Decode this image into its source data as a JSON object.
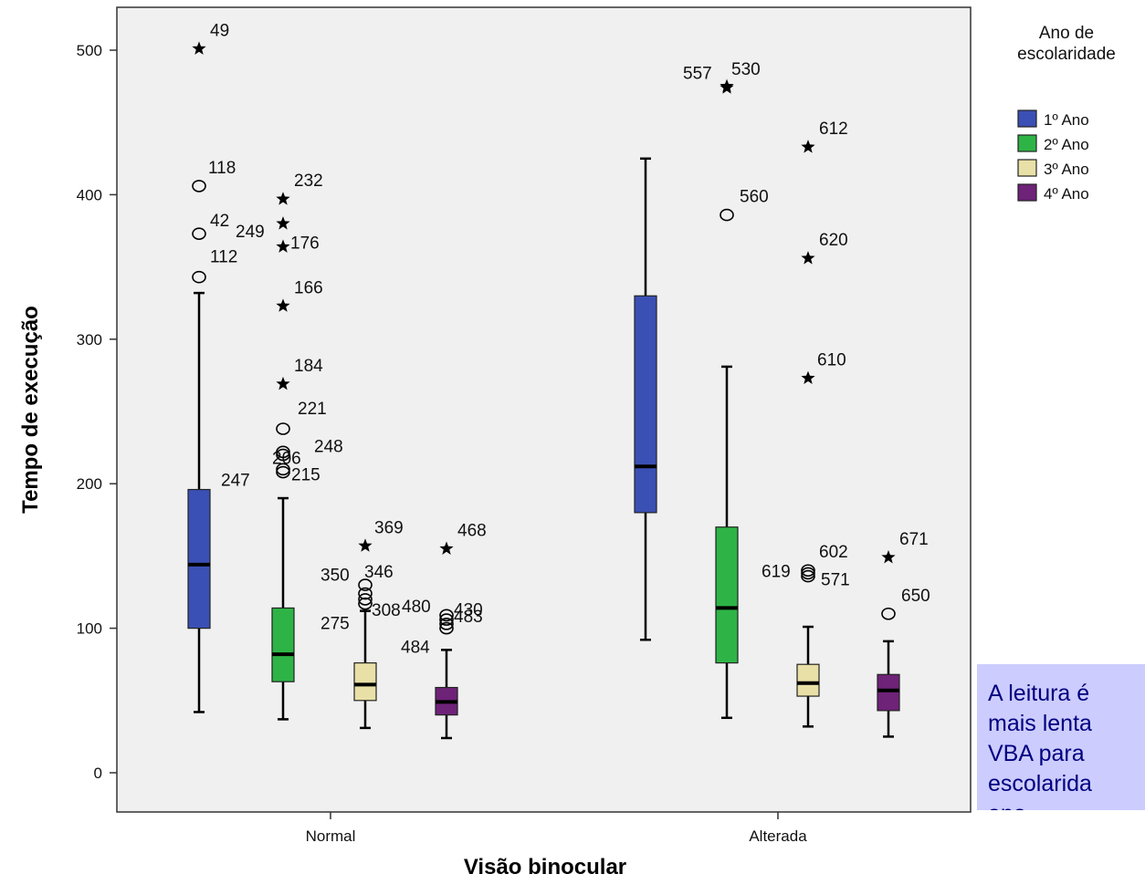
{
  "annotation_text": "A leitura é\nmais lenta\nVBA para\nescolarida\nano.",
  "legend": {
    "title_line1": "Ano de",
    "title_line2": "escolaridade"
  },
  "colors": {
    "1º Ano": "#3b50b4",
    "2º Ano": "#2eb446",
    "3º Ano": "#e8e0a6",
    "4º Ano": "#6e2278",
    "plot_background": "#f0f0f0",
    "annotation_background": "#ccccff",
    "annotation_text": "#000080"
  },
  "chart_data": {
    "type": "boxplot",
    "xlabel": "Visão binocular",
    "ylabel": "Tempo de execução",
    "ylim": [
      -20,
      530
    ],
    "yticks": [
      0,
      100,
      200,
      300,
      400,
      500
    ],
    "grid": false,
    "legend_position": "top-right",
    "categories": [
      "Normal",
      "Alterada"
    ],
    "series": [
      {
        "name": "1º Ano",
        "boxes": [
          {
            "category": "Normal",
            "whisker_low": 42,
            "q1": 100,
            "median": 144,
            "q3": 196,
            "whisker_high": 332,
            "outliers": [
              {
                "label": "112",
                "value": 343,
                "marker": "circle"
              },
              {
                "label": "42",
                "value": 373,
                "marker": "circle"
              },
              {
                "label": "118",
                "value": 406,
                "marker": "circle"
              },
              {
                "label": "49",
                "value": 501,
                "marker": "star"
              }
            ]
          },
          {
            "category": "Alterada",
            "whisker_low": 92,
            "q1": 180,
            "median": 212,
            "q3": 330,
            "whisker_high": 425,
            "outliers": []
          }
        ]
      },
      {
        "name": "2º Ano",
        "boxes": [
          {
            "category": "Normal",
            "whisker_low": 37,
            "q1": 63,
            "median": 82,
            "q3": 114,
            "whisker_high": 190,
            "outliers": [
              {
                "label": "247",
                "value": 208,
                "marker": "circle"
              },
              {
                "label": "215",
                "value": 210,
                "marker": "circle"
              },
              {
                "label": "206",
                "value": 220,
                "marker": "circle"
              },
              {
                "label": "248",
                "value": 222,
                "marker": "circle"
              },
              {
                "label": "221",
                "value": 238,
                "marker": "circle"
              },
              {
                "label": "184",
                "value": 269,
                "marker": "star"
              },
              {
                "label": "166",
                "value": 323,
                "marker": "star"
              },
              {
                "label": "176",
                "value": 364,
                "marker": "star"
              },
              {
                "label": "249",
                "value": 380,
                "marker": "star"
              },
              {
                "label": "232",
                "value": 397,
                "marker": "star"
              }
            ]
          },
          {
            "category": "Alterada",
            "whisker_low": 38,
            "q1": 76,
            "median": 114,
            "q3": 170,
            "whisker_high": 281,
            "outliers": [
              {
                "label": "560",
                "value": 386,
                "marker": "circle"
              },
              {
                "label": "557",
                "value": 475,
                "marker": "star"
              },
              {
                "label": "530",
                "value": 474,
                "marker": "star"
              }
            ]
          }
        ]
      },
      {
        "name": "3º Ano",
        "boxes": [
          {
            "category": "Normal",
            "whisker_low": 31,
            "q1": 50,
            "median": 61,
            "q3": 76,
            "whisker_high": 112,
            "outliers": [
              {
                "label": "275",
                "value": 117,
                "marker": "circle"
              },
              {
                "label": "308",
                "value": 120,
                "marker": "circle"
              },
              {
                "label": "350",
                "value": 124,
                "marker": "circle"
              },
              {
                "label": "346",
                "value": 130,
                "marker": "circle"
              },
              {
                "label": "369",
                "value": 157,
                "marker": "star"
              }
            ]
          },
          {
            "category": "Alterada",
            "whisker_low": 32,
            "q1": 53,
            "median": 62,
            "q3": 75,
            "whisker_high": 101,
            "outliers": [
              {
                "label": "571",
                "value": 136,
                "marker": "circle"
              },
              {
                "label": "619",
                "value": 138,
                "marker": "circle"
              },
              {
                "label": "602",
                "value": 140,
                "marker": "circle"
              },
              {
                "label": "610",
                "value": 273,
                "marker": "star"
              },
              {
                "label": "620",
                "value": 356,
                "marker": "star"
              },
              {
                "label": "612",
                "value": 433,
                "marker": "star"
              }
            ]
          }
        ]
      },
      {
        "name": "4º Ano",
        "boxes": [
          {
            "category": "Normal",
            "whisker_low": 24,
            "q1": 40,
            "median": 49,
            "q3": 59,
            "whisker_high": 85,
            "outliers": [
              {
                "label": "484",
                "value": 100,
                "marker": "circle"
              },
              {
                "label": "483",
                "value": 103,
                "marker": "circle"
              },
              {
                "label": "480",
                "value": 106,
                "marker": "circle"
              },
              {
                "label": "430",
                "value": 109,
                "marker": "circle"
              },
              {
                "label": "468",
                "value": 155,
                "marker": "star"
              }
            ]
          },
          {
            "category": "Alterada",
            "whisker_low": 25,
            "q1": 43,
            "median": 57,
            "q3": 68,
            "whisker_high": 91,
            "outliers": [
              {
                "label": "650",
                "value": 110,
                "marker": "circle"
              },
              {
                "label": "671",
                "value": 149,
                "marker": "star"
              }
            ]
          }
        ]
      }
    ]
  }
}
